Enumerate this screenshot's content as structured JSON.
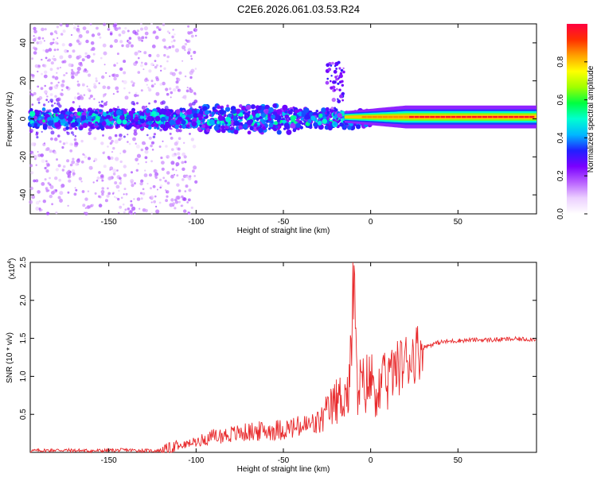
{
  "title": "C2E6.2026.061.03.53.R24",
  "colors": {
    "snr_line": "#e8292b",
    "spectrogram_bg": "#ffffff",
    "colormap": [
      "#ffffff",
      "#ecd0ff",
      "#b860ff",
      "#7a00ff",
      "#2020ff",
      "#00b8ff",
      "#00ffd0",
      "#00ff40",
      "#a0ff00",
      "#ffff00",
      "#ffa000",
      "#ff3000",
      "#ff0040"
    ]
  },
  "chart_data": [
    {
      "type": "heatmap",
      "name": "spectrogram",
      "title": "C2E6.2026.061.03.53.R24",
      "xlabel": "Height of straight line (km)",
      "ylabel": "Frequency (Hz)",
      "xlim": [
        -195,
        95
      ],
      "ylim": [
        -50,
        50
      ],
      "xticks": [
        -150,
        -100,
        -50,
        0,
        50
      ],
      "xtick_labels": [
        "-150",
        "-100",
        "-50",
        "0",
        "50"
      ],
      "yticks": [
        -40,
        -20,
        0,
        20,
        40
      ],
      "ytick_labels": [
        "-40",
        "-20",
        "0",
        "20",
        "40"
      ],
      "colorbar": {
        "label": "Normalized spectral amplitude",
        "range": [
          0,
          1
        ],
        "ticks": [
          0.0,
          0.2,
          0.4,
          0.6,
          0.8
        ],
        "tick_labels": [
          "0.0",
          "0.2",
          "0.4",
          "0.6",
          "0.8"
        ]
      },
      "description_points": {
        "center_freq_hz": 0,
        "bright_band_x_start_km": 20,
        "bright_band_x_end_km": 95,
        "burst_x_km": -20,
        "burst_freq_max_hz": 25
      }
    },
    {
      "type": "line",
      "name": "snr",
      "xlabel": "Height of straight line (km)",
      "ylabel": "SNR (10 * v/v)",
      "y_multiplier_label": "(x10",
      "y_multiplier_exp": "4",
      "y_multiplier_close": ")",
      "xlim": [
        -195,
        95
      ],
      "ylim": [
        0,
        2.5
      ],
      "xticks": [
        -150,
        -100,
        -50,
        0,
        50
      ],
      "xtick_labels": [
        "-150",
        "-100",
        "-50",
        "0",
        "50"
      ],
      "yticks": [
        0.5,
        1.0,
        1.5,
        2.0,
        2.5
      ],
      "ytick_labels": [
        "0.5",
        "1.0",
        "1.5",
        "2.0",
        "2.5"
      ],
      "series": [
        {
          "name": "SNR",
          "x": [
            -195,
            -180,
            -160,
            -140,
            -125,
            -118,
            -110,
            -100,
            -90,
            -80,
            -70,
            -60,
            -50,
            -40,
            -30,
            -25,
            -20,
            -15,
            -12,
            -10,
            -8,
            -5,
            0,
            5,
            10,
            15,
            20,
            25,
            30,
            35,
            40,
            50,
            60,
            70,
            80,
            95
          ],
          "values": [
            0.02,
            0.03,
            0.02,
            0.03,
            0.02,
            0.03,
            0.08,
            0.15,
            0.22,
            0.25,
            0.28,
            0.3,
            0.32,
            0.35,
            0.4,
            0.55,
            0.7,
            0.8,
            0.85,
            2.5,
            0.95,
            0.9,
            1.0,
            0.85,
            1.0,
            1.1,
            1.2,
            1.3,
            1.38,
            1.42,
            1.45,
            1.47,
            1.48,
            1.48,
            1.49,
            1.49
          ]
        }
      ]
    }
  ]
}
